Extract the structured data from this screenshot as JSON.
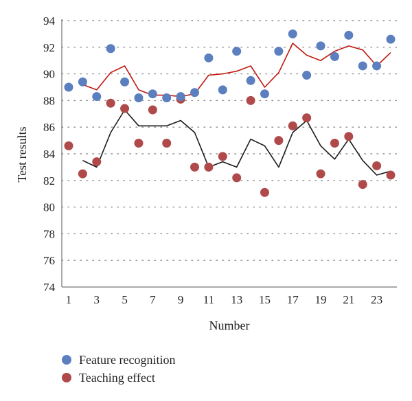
{
  "chart_data": {
    "type": "scatter",
    "xlabel": "Number",
    "ylabel": "Test results",
    "ylim": [
      74,
      94
    ],
    "xlim": [
      1,
      24
    ],
    "yticks": [
      74,
      76,
      78,
      80,
      82,
      84,
      86,
      88,
      90,
      92,
      94
    ],
    "xticks": [
      1,
      3,
      5,
      7,
      9,
      11,
      13,
      15,
      17,
      19,
      21,
      23
    ],
    "grid": "horizontal dotted",
    "legend_position": "bottom-left",
    "x": [
      1,
      2,
      3,
      4,
      5,
      6,
      7,
      8,
      9,
      10,
      11,
      12,
      13,
      14,
      15,
      16,
      17,
      18,
      19,
      20,
      21,
      22,
      23,
      24
    ],
    "series": [
      {
        "name": "Feature recognition",
        "color": "#5b7fbf",
        "values": [
          89.0,
          89.4,
          88.3,
          91.9,
          89.4,
          88.2,
          88.5,
          88.2,
          88.3,
          88.6,
          91.2,
          88.8,
          91.7,
          89.5,
          88.5,
          91.7,
          93.0,
          89.9,
          92.1,
          91.3,
          92.9,
          90.6,
          90.6,
          92.6
        ],
        "trendline": [
          null,
          89.2,
          88.8,
          90.1,
          90.6,
          88.8,
          88.4,
          88.4,
          88.3,
          88.5,
          89.9,
          90.0,
          90.2,
          90.6,
          89.0,
          90.1,
          92.3,
          91.4,
          91.0,
          91.7,
          92.1,
          91.8,
          90.6,
          91.6
        ],
        "trendline_color": "#c0170f"
      },
      {
        "name": "Teaching effect",
        "color": "#b04a4a",
        "values": [
          84.6,
          82.5,
          83.4,
          87.8,
          87.4,
          84.8,
          87.3,
          84.8,
          88.1,
          83.0,
          83.0,
          83.8,
          82.2,
          88.0,
          81.1,
          85.0,
          86.1,
          86.7,
          82.5,
          84.8,
          85.3,
          81.7,
          83.1,
          82.4
        ],
        "trendline": [
          null,
          83.5,
          83.0,
          85.6,
          87.3,
          86.1,
          86.1,
          86.1,
          86.5,
          85.6,
          83.0,
          83.4,
          83.0,
          85.1,
          84.6,
          83.0,
          85.6,
          86.5,
          84.6,
          83.6,
          85.1,
          83.5,
          82.4,
          82.7
        ],
        "trendline_color": "#1a1a1a"
      }
    ]
  }
}
